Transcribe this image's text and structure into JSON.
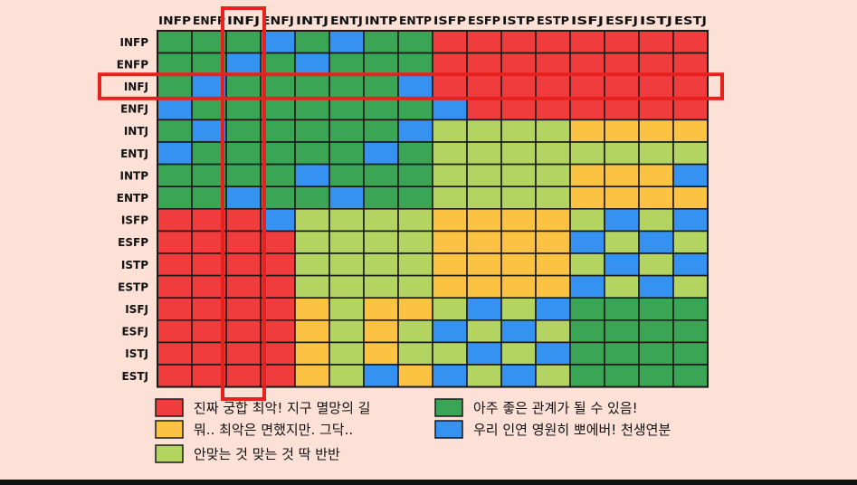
{
  "chart_data": {
    "type": "heatmap",
    "title": "",
    "xlabel": "",
    "ylabel": "",
    "categories_x": [
      "INFP",
      "ENFP",
      "INFJ",
      "ENFJ",
      "INTJ",
      "ENTJ",
      "INTP",
      "ENTP",
      "ISFP",
      "ESFP",
      "ISTP",
      "ESTP",
      "ISFJ",
      "ESFJ",
      "ISTJ",
      "ESTJ"
    ],
    "categories_y": [
      "INFP",
      "ENFP",
      "INFJ",
      "ENFJ",
      "INTJ",
      "ENTJ",
      "INTP",
      "ENTP",
      "ISFP",
      "ESFP",
      "ISTP",
      "ESTP",
      "ISFJ",
      "ESFJ",
      "ISTJ",
      "ESTJ"
    ],
    "levels": [
      {
        "code": "R",
        "label": "진짜 궁합 최악! 지구 멸망의 길",
        "color": "#f03c3c"
      },
      {
        "code": "G",
        "label": "아주 좋은 관계가 될 수 있음!",
        "color": "#3aa655"
      },
      {
        "code": "Y",
        "label": "뭐.. 최악은 면했지만. 그닥..",
        "color": "#fcc241"
      },
      {
        "code": "B",
        "label": "우리 인연 영원히 뽀에버! 천생연분",
        "color": "#3592f0"
      },
      {
        "code": "L",
        "label": "안맞는 것 맞는 것 딱 반반",
        "color": "#b3d460"
      }
    ],
    "matrix": [
      [
        "G",
        "G",
        "G",
        "B",
        "G",
        "B",
        "G",
        "G",
        "R",
        "R",
        "R",
        "R",
        "R",
        "R",
        "R",
        "R"
      ],
      [
        "G",
        "G",
        "B",
        "G",
        "B",
        "G",
        "G",
        "G",
        "R",
        "R",
        "R",
        "R",
        "R",
        "R",
        "R",
        "R"
      ],
      [
        "G",
        "B",
        "G",
        "G",
        "G",
        "G",
        "G",
        "B",
        "R",
        "R",
        "R",
        "R",
        "R",
        "R",
        "R",
        "R"
      ],
      [
        "B",
        "G",
        "G",
        "G",
        "G",
        "G",
        "G",
        "G",
        "B",
        "R",
        "R",
        "R",
        "R",
        "R",
        "R",
        "R"
      ],
      [
        "G",
        "B",
        "G",
        "G",
        "G",
        "G",
        "G",
        "B",
        "L",
        "L",
        "L",
        "L",
        "Y",
        "Y",
        "Y",
        "Y"
      ],
      [
        "B",
        "G",
        "G",
        "G",
        "G",
        "G",
        "B",
        "G",
        "L",
        "L",
        "L",
        "L",
        "L",
        "L",
        "L",
        "L"
      ],
      [
        "G",
        "G",
        "G",
        "G",
        "B",
        "G",
        "G",
        "G",
        "L",
        "L",
        "L",
        "L",
        "Y",
        "Y",
        "Y",
        "B"
      ],
      [
        "G",
        "G",
        "B",
        "G",
        "G",
        "B",
        "G",
        "G",
        "L",
        "L",
        "L",
        "L",
        "Y",
        "Y",
        "Y",
        "Y"
      ],
      [
        "R",
        "R",
        "R",
        "B",
        "L",
        "L",
        "L",
        "L",
        "Y",
        "Y",
        "Y",
        "Y",
        "L",
        "B",
        "L",
        "B"
      ],
      [
        "R",
        "R",
        "R",
        "R",
        "L",
        "L",
        "L",
        "L",
        "Y",
        "Y",
        "Y",
        "Y",
        "B",
        "L",
        "B",
        "L"
      ],
      [
        "R",
        "R",
        "R",
        "R",
        "L",
        "L",
        "L",
        "L",
        "Y",
        "Y",
        "Y",
        "Y",
        "L",
        "B",
        "L",
        "B"
      ],
      [
        "R",
        "R",
        "R",
        "R",
        "L",
        "L",
        "L",
        "L",
        "Y",
        "Y",
        "Y",
        "Y",
        "B",
        "L",
        "B",
        "L"
      ],
      [
        "R",
        "R",
        "R",
        "R",
        "Y",
        "L",
        "Y",
        "Y",
        "L",
        "B",
        "L",
        "B",
        "G",
        "G",
        "G",
        "G"
      ],
      [
        "R",
        "R",
        "R",
        "R",
        "Y",
        "L",
        "Y",
        "L",
        "B",
        "L",
        "B",
        "L",
        "G",
        "G",
        "G",
        "G"
      ],
      [
        "R",
        "R",
        "R",
        "R",
        "Y",
        "L",
        "Y",
        "L",
        "L",
        "B",
        "L",
        "B",
        "G",
        "G",
        "G",
        "G"
      ],
      [
        "R",
        "R",
        "R",
        "R",
        "Y",
        "L",
        "B",
        "Y",
        "B",
        "L",
        "B",
        "L",
        "G",
        "G",
        "G",
        "G"
      ]
    ],
    "highlight": {
      "column": "INFJ",
      "row": "INFJ",
      "color": "#e8211f"
    },
    "legend_position": "bottom"
  }
}
